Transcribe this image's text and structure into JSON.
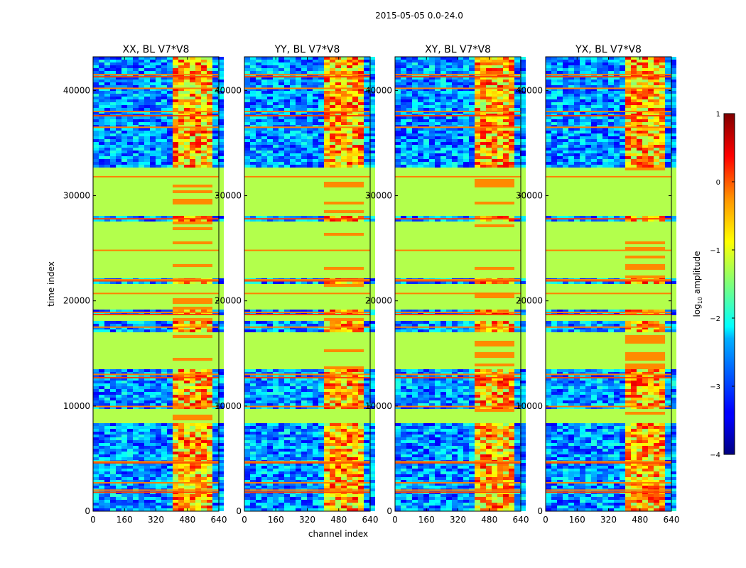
{
  "chart_data": {
    "type": "heatmap",
    "suptitle": "2015-05-05 0.0-24.0",
    "xlabel": "channel index",
    "ylabel": "time index",
    "xlim": [
      0,
      640
    ],
    "ylim": [
      0,
      43200
    ],
    "xticks": [
      0,
      160,
      320,
      480,
      640
    ],
    "yticks": [
      0,
      10000,
      20000,
      30000,
      40000
    ],
    "xtick_labels": [
      "0",
      "160",
      "320",
      "480",
      "640"
    ],
    "ytick_labels": [
      "0",
      "10000",
      "20000",
      "30000",
      "40000"
    ],
    "colorbar": {
      "label_main": "log",
      "label_sub": "10",
      "label_tail": " amplitude",
      "range": [
        -4,
        1
      ],
      "ticks": [
        1,
        0,
        -1,
        -2,
        -3,
        -4
      ],
      "tick_labels": [
        "1",
        "0",
        "−1",
        "−2",
        "−3",
        "−4"
      ],
      "colormap": "jet"
    },
    "panels": [
      {
        "title": "XX, BL V7*V8"
      },
      {
        "title": "YY, BL V7*V8"
      },
      {
        "title": "XY, BL V7*V8"
      },
      {
        "title": "YX, BL V7*V8"
      }
    ],
    "band_channels": [
      400,
      620
    ],
    "flagged_value": -1.25,
    "flagged_time_ranges": [
      [
        8300,
        9800
      ],
      [
        13600,
        17000
      ],
      [
        18000,
        18600
      ],
      [
        19100,
        21600
      ],
      [
        22100,
        27600
      ],
      [
        28000,
        32600
      ]
    ],
    "rfi_time_index": [
      1800,
      2000,
      2700,
      4600,
      4700,
      9950,
      12700,
      13000,
      17500,
      18700,
      18900,
      20700,
      21900,
      22000,
      24800,
      27800,
      31800,
      36500,
      37600,
      38000,
      40200,
      41300,
      41500
    ]
  }
}
